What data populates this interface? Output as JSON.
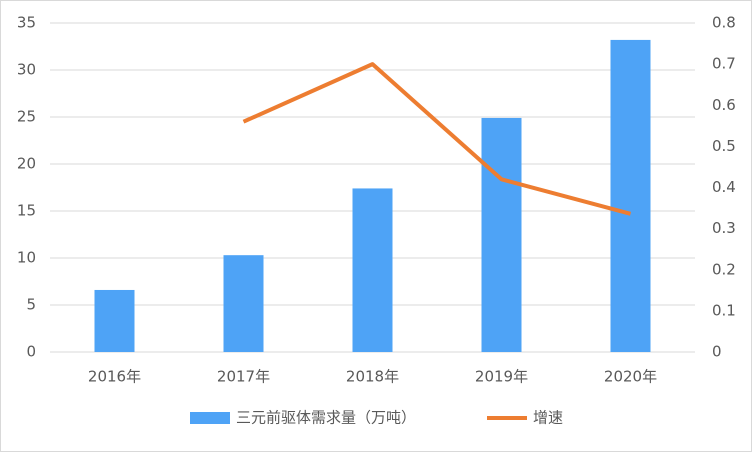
{
  "chart_data": {
    "type": "bar",
    "categories": [
      "2016年",
      "2017年",
      "2018年",
      "2019年",
      "2020年"
    ],
    "series": [
      {
        "name": "三元前驱体需求量（万吨）",
        "type": "bar",
        "color": "#4ea3f6",
        "values": [
          6.6,
          10.3,
          17.4,
          24.9,
          33.2
        ]
      },
      {
        "name": "增速",
        "type": "line",
        "axis": "y2",
        "color": "#ed7d31",
        "values": [
          null,
          0.56,
          0.7,
          0.42,
          0.336
        ]
      }
    ],
    "ylim": [
      0,
      35
    ],
    "yticks": [
      0,
      5,
      10,
      15,
      20,
      25,
      30,
      35
    ],
    "y2lim": [
      0,
      0.8
    ],
    "y2ticks": [
      0,
      0.1,
      0.2,
      0.3,
      0.4,
      0.5,
      0.6,
      0.7,
      0.8
    ],
    "grid": true,
    "legend": "bottom"
  }
}
